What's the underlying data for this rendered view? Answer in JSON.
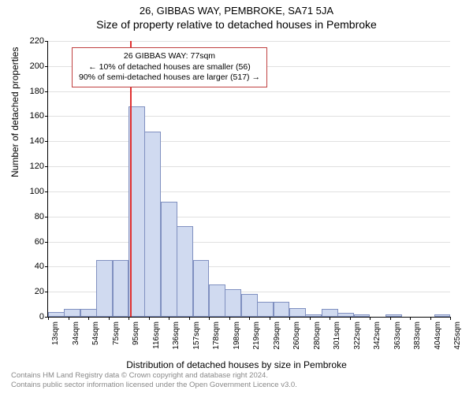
{
  "header": {
    "address": "26, GIBBAS WAY, PEMBROKE, SA71 5JA",
    "subtitle": "Size of property relative to detached houses in Pembroke"
  },
  "chart": {
    "type": "histogram",
    "ylabel": "Number of detached properties",
    "xlabel": "Distribution of detached houses by size in Pembroke",
    "ylim": [
      0,
      220
    ],
    "ytick_step": 20,
    "xticks": [
      "13sqm",
      "34sqm",
      "54sqm",
      "75sqm",
      "95sqm",
      "116sqm",
      "136sqm",
      "157sqm",
      "178sqm",
      "198sqm",
      "219sqm",
      "239sqm",
      "260sqm",
      "280sqm",
      "301sqm",
      "322sqm",
      "342sqm",
      "363sqm",
      "383sqm",
      "404sqm",
      "425sqm"
    ],
    "values": [
      4,
      6,
      6,
      45,
      45,
      168,
      148,
      92,
      72,
      45,
      26,
      22,
      18,
      12,
      12,
      7,
      2,
      6,
      3,
      2,
      0,
      2,
      0,
      0,
      2
    ],
    "bar_fill": "#d0daf0",
    "bar_border": "#8090c0",
    "background_color": "#ffffff",
    "grid_color": "#e0e0e0",
    "marker": {
      "position_index": 5.1,
      "color": "#e03030"
    },
    "annotation": {
      "line1": "26 GIBBAS WAY: 77sqm",
      "line2": "← 10% of detached houses are smaller (56)",
      "line3": "90% of semi-detached houses are larger (517) →",
      "border_color": "#c04040"
    }
  },
  "footer": {
    "line1": "Contains HM Land Registry data © Crown copyright and database right 2024.",
    "line2": "Contains public sector information licensed under the Open Government Licence v3.0."
  }
}
